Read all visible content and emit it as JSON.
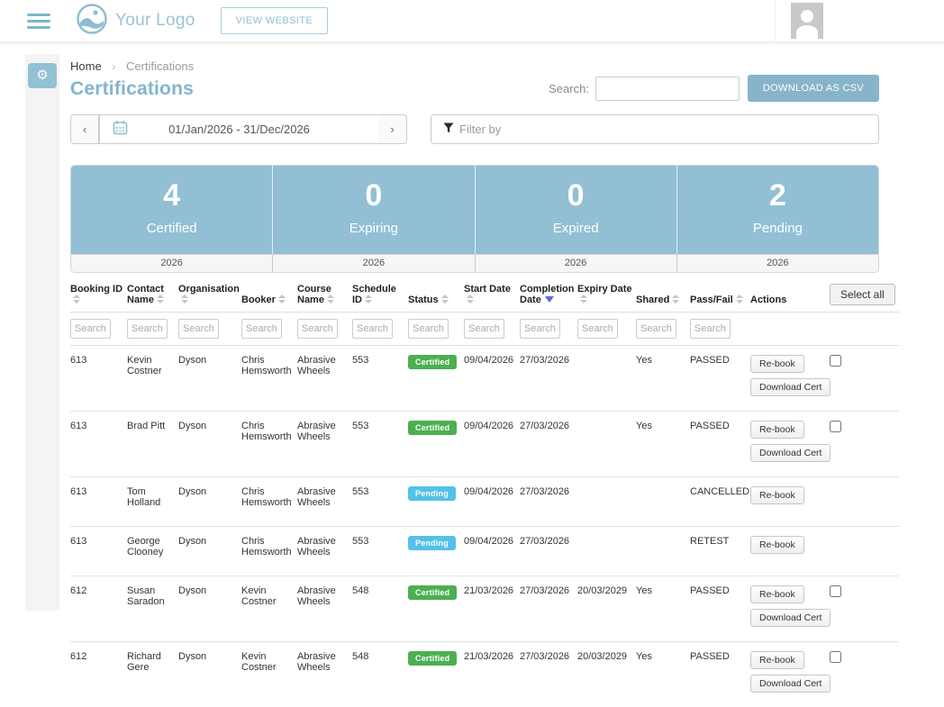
{
  "colors": {
    "accent": "#8fbdd3",
    "stats_bg": "#92bfd4",
    "certified_badge": "#4caf50",
    "pending_badge": "#53c1e9",
    "sort_active": "#5a67e0"
  },
  "icons": {
    "gear": "⚙",
    "breadcrumb_chevron": "›",
    "prev_chevron": "‹",
    "next_chevron": "›"
  },
  "header": {
    "logo_text": "Your Logo",
    "view_website_label": "VIEW WEBSITE"
  },
  "breadcrumb": {
    "home": "Home",
    "current": "Certifications"
  },
  "page": {
    "title": "Certifications",
    "search_label": "Search:",
    "search_value": "",
    "download_csv_label": "DOWNLOAD AS CSV"
  },
  "date_range": {
    "value": "01/Jan/2026 - 31/Dec/2026"
  },
  "filter": {
    "placeholder": "Filter by"
  },
  "stats": {
    "items": [
      {
        "value": "4",
        "label": "Certified",
        "year": "2026"
      },
      {
        "value": "0",
        "label": "Expiring",
        "year": "2026"
      },
      {
        "value": "0",
        "label": "Expired",
        "year": "2026"
      },
      {
        "value": "2",
        "label": "Pending",
        "year": "2026"
      }
    ]
  },
  "table": {
    "search_placeholder": "Search",
    "select_all_label": "Select all",
    "columns": [
      {
        "label": "Booking ID",
        "sort": "both",
        "search": true
      },
      {
        "label": "Contact Name",
        "sort": "both",
        "search": true
      },
      {
        "label": "Organisation",
        "sort": "both",
        "search": true
      },
      {
        "label": "Booker",
        "sort": "both",
        "search": true
      },
      {
        "label": "Course Name",
        "sort": "both",
        "search": true
      },
      {
        "label": "Schedule ID",
        "sort": "both",
        "search": true
      },
      {
        "label": "Status",
        "sort": "both",
        "search": true
      },
      {
        "label": "Start Date",
        "sort": "both",
        "search": true
      },
      {
        "label": "Completion Date",
        "sort": "desc",
        "search": true
      },
      {
        "label": "Expiry Date",
        "sort": "both",
        "search": true
      },
      {
        "label": "Shared",
        "sort": "both",
        "search": true
      },
      {
        "label": "Pass/Fail",
        "sort": "both",
        "search": true
      },
      {
        "label": "Actions",
        "sort": "none",
        "search": false
      }
    ],
    "rows": [
      {
        "booking_id": "613",
        "contact_name": "Kevin Costner",
        "organisation": "Dyson",
        "booker": "Chris Hemsworth",
        "course_name": "Abrasive Wheels",
        "schedule_id": "553",
        "status": "Certified",
        "status_type": "certified",
        "start_date": "09/04/2026",
        "completion_date": "27/03/2026",
        "expiry_date": "",
        "shared": "Yes",
        "pass_fail": "PASSED",
        "actions": [
          "Re-book",
          "Download Cert"
        ],
        "selectable": true
      },
      {
        "booking_id": "613",
        "contact_name": "Brad Pitt",
        "organisation": "Dyson",
        "booker": "Chris Hemsworth",
        "course_name": "Abrasive Wheels",
        "schedule_id": "553",
        "status": "Certified",
        "status_type": "certified",
        "start_date": "09/04/2026",
        "completion_date": "27/03/2026",
        "expiry_date": "",
        "shared": "Yes",
        "pass_fail": "PASSED",
        "actions": [
          "Re-book",
          "Download Cert"
        ],
        "selectable": true
      },
      {
        "booking_id": "613",
        "contact_name": "Tom Holland",
        "organisation": "Dyson",
        "booker": "Chris Hemsworth",
        "course_name": "Abrasive Wheels",
        "schedule_id": "553",
        "status": "Pending",
        "status_type": "pending",
        "start_date": "09/04/2026",
        "completion_date": "27/03/2026",
        "expiry_date": "",
        "shared": "",
        "pass_fail": "CANCELLED",
        "actions": [
          "Re-book"
        ],
        "selectable": false
      },
      {
        "booking_id": "613",
        "contact_name": "George Clooney",
        "organisation": "Dyson",
        "booker": "Chris Hemsworth",
        "course_name": "Abrasive Wheels",
        "schedule_id": "553",
        "status": "Pending",
        "status_type": "pending",
        "start_date": "09/04/2026",
        "completion_date": "27/03/2026",
        "expiry_date": "",
        "shared": "",
        "pass_fail": "RETEST",
        "actions": [
          "Re-book"
        ],
        "selectable": false
      },
      {
        "booking_id": "612",
        "contact_name": "Susan Saradon",
        "organisation": "Dyson",
        "booker": "Kevin Costner",
        "course_name": "Abrasive Wheels",
        "schedule_id": "548",
        "status": "Certified",
        "status_type": "certified",
        "start_date": "21/03/2026",
        "completion_date": "27/03/2026",
        "expiry_date": "20/03/2029",
        "shared": "Yes",
        "pass_fail": "PASSED",
        "actions": [
          "Re-book",
          "Download Cert"
        ],
        "selectable": true
      },
      {
        "booking_id": "612",
        "contact_name": "Richard Gere",
        "organisation": "Dyson",
        "booker": "Kevin Costner",
        "course_name": "Abrasive Wheels",
        "schedule_id": "548",
        "status": "Certified",
        "status_type": "certified",
        "start_date": "21/03/2026",
        "completion_date": "27/03/2026",
        "expiry_date": "20/03/2029",
        "shared": "Yes",
        "pass_fail": "PASSED",
        "actions": [
          "Re-book",
          "Download Cert"
        ],
        "selectable": true
      }
    ]
  }
}
